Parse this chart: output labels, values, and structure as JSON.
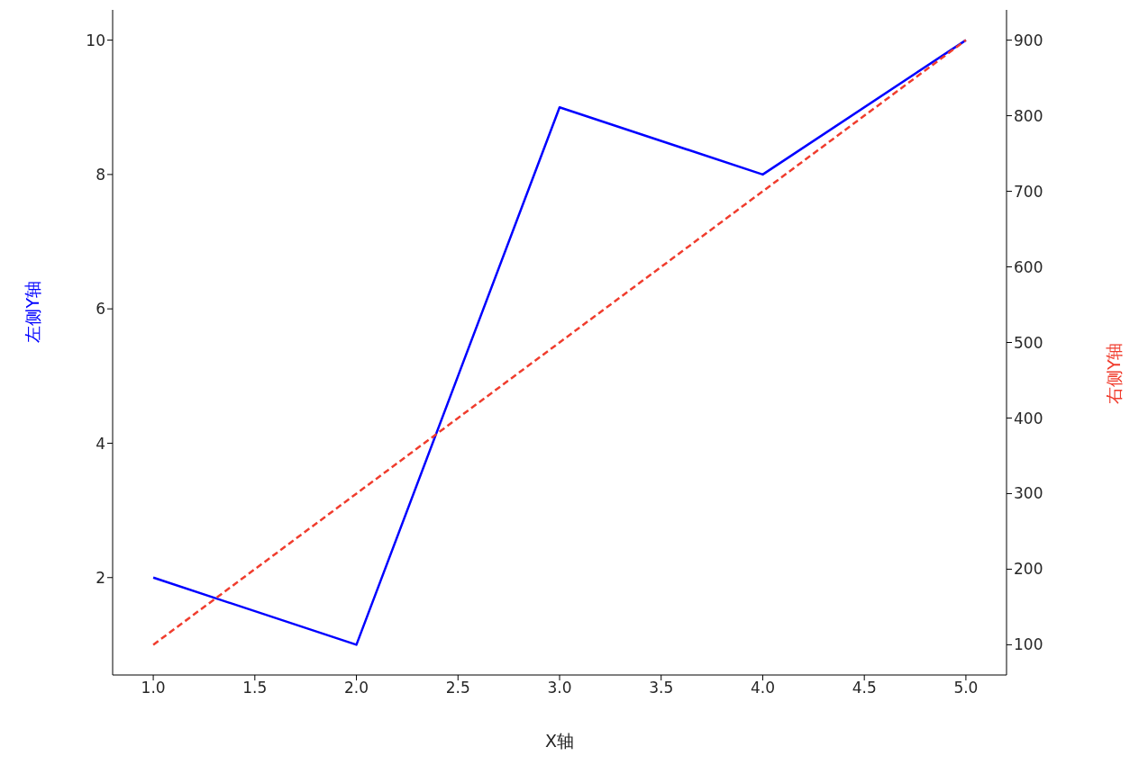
{
  "chart_data": {
    "type": "line",
    "x": [
      1,
      2,
      3,
      4,
      5
    ],
    "xlabel": "X轴",
    "ylabel": "左侧Y轴",
    "y2label": "右侧Y轴",
    "series": [
      {
        "color": "#0000ff",
        "values": [
          2,
          1,
          9,
          8,
          10
        ],
        "line_style": "solid"
      },
      {
        "color": "#f03c2d",
        "values": [
          100,
          300,
          500,
          700,
          900
        ],
        "axis": "y2",
        "line_style": "dashed"
      }
    ],
    "xlim": [
      0.8,
      5.2
    ],
    "xticks": [
      {
        "value": 1,
        "label": "1.0"
      },
      {
        "value": 1.5,
        "label": "1.5"
      },
      {
        "value": 2,
        "label": "2.0"
      },
      {
        "value": 2.5,
        "label": "2.5"
      },
      {
        "value": 3,
        "label": "3.0"
      },
      {
        "value": 3.5,
        "label": "3.5"
      },
      {
        "value": 4,
        "label": "4.0"
      },
      {
        "value": 4.5,
        "label": "4.5"
      },
      {
        "value": 5,
        "label": "5.0"
      }
    ],
    "ylim": [
      0.55,
      10.45
    ],
    "yticks": [
      2,
      4,
      6,
      8,
      10
    ],
    "y2lim": [
      60,
      940
    ],
    "y2ticks": [
      100,
      200,
      300,
      400,
      500,
      600,
      700,
      800,
      900
    ],
    "grid": false,
    "legend": false,
    "marker": "none"
  }
}
